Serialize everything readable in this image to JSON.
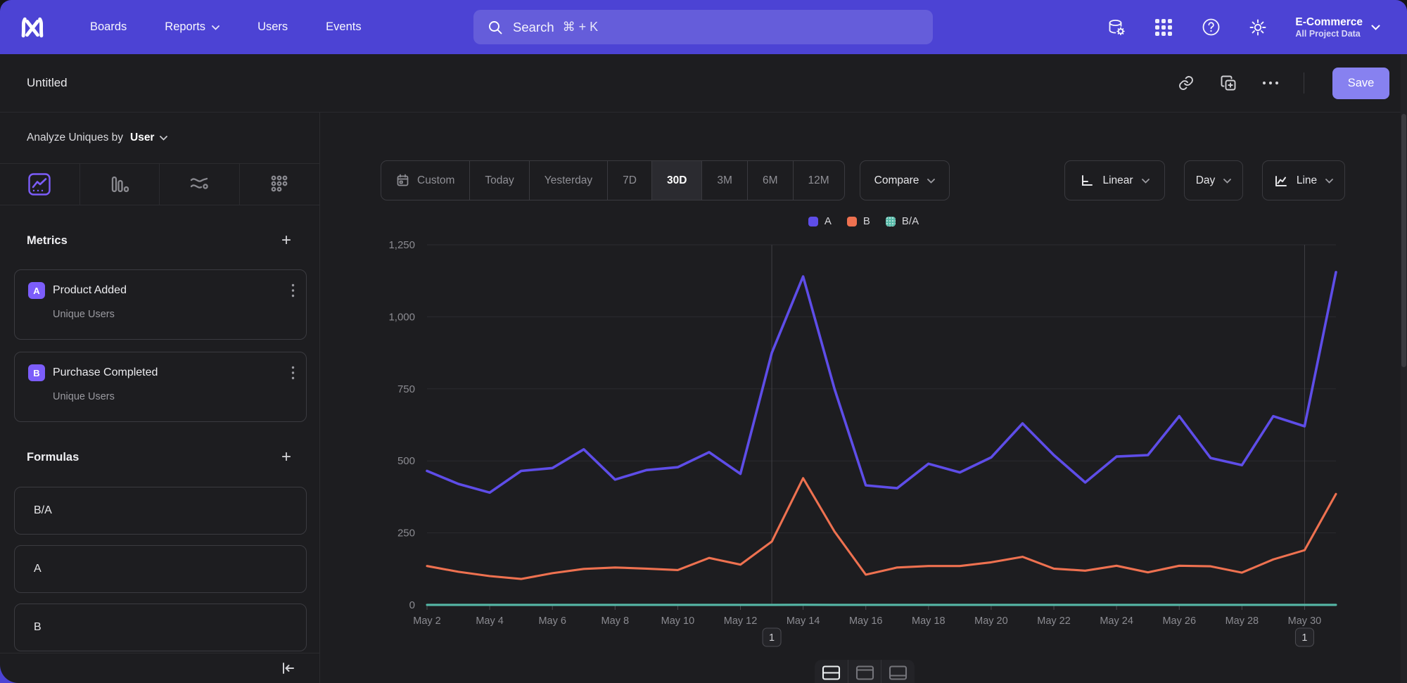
{
  "nav": {
    "items": [
      {
        "label": "Boards",
        "has_menu": false
      },
      {
        "label": "Reports",
        "has_menu": true
      },
      {
        "label": "Users",
        "has_menu": false
      },
      {
        "label": "Events",
        "has_menu": false
      }
    ],
    "search": {
      "placeholder": "Search",
      "shortcut": "⌘ + K"
    },
    "icons": [
      "data-management-icon",
      "apps-grid-icon",
      "help-icon",
      "settings-gear-icon"
    ],
    "project": {
      "name": "E-Commerce",
      "scope": "All Project Data"
    }
  },
  "report": {
    "title": "Untitled",
    "save_label": "Save",
    "actions": [
      "copy-link-icon",
      "duplicate-icon",
      "more-icon"
    ]
  },
  "sidebar": {
    "analyze_label": "Analyze Uniques by",
    "analyze_value": "User",
    "tabs": [
      "line-chart",
      "bar-chart",
      "flow",
      "metric-grid"
    ],
    "active_tab": "line-chart",
    "metrics": {
      "title": "Metrics",
      "add_label": "+",
      "items": [
        {
          "letter": "A",
          "name": "Product Added",
          "sub": "Unique Users"
        },
        {
          "letter": "B",
          "name": "Purchase Completed",
          "sub": "Unique Users"
        }
      ]
    },
    "formulas": {
      "title": "Formulas",
      "add_label": "+",
      "items": [
        "B/A",
        "A",
        "B"
      ]
    }
  },
  "toolbar": {
    "ranges": [
      {
        "label": "Custom",
        "calendar_icon": true
      },
      {
        "label": "Today"
      },
      {
        "label": "Yesterday"
      },
      {
        "label": "7D"
      },
      {
        "label": "30D"
      },
      {
        "label": "3M"
      },
      {
        "label": "6M"
      },
      {
        "label": "12M"
      }
    ],
    "active_range": "30D",
    "compare_label": "Compare",
    "scale_label": "Linear",
    "interval_label": "Day",
    "chart_type_label": "Line"
  },
  "chart_data": {
    "type": "line",
    "title": "",
    "x": [
      "May 2",
      "May 3",
      "May 4",
      "May 5",
      "May 6",
      "May 7",
      "May 8",
      "May 9",
      "May 10",
      "May 11",
      "May 12",
      "May 13",
      "May 14",
      "May 15",
      "May 16",
      "May 17",
      "May 18",
      "May 19",
      "May 20",
      "May 21",
      "May 22",
      "May 23",
      "May 24",
      "May 25",
      "May 26",
      "May 27",
      "May 28",
      "May 29",
      "May 30",
      "May 31"
    ],
    "x_label_step": 2,
    "ylim": [
      0,
      1250
    ],
    "yticks": [
      0,
      250,
      500,
      750,
      1000,
      1250
    ],
    "ytick_labels": [
      "0",
      "250",
      "500",
      "750",
      "1,000",
      "1,250"
    ],
    "grid": true,
    "legend_position": "top-center",
    "series": [
      {
        "name": "A",
        "color": "#5e4de8",
        "values": [
          465,
          420,
          390,
          465,
          475,
          540,
          435,
          468,
          478,
          530,
          455,
          875,
          1140,
          750,
          415,
          405,
          490,
          460,
          512,
          630,
          520,
          425,
          515,
          520,
          655,
          510,
          485,
          655,
          620,
          1155
        ]
      },
      {
        "name": "B",
        "color": "#ee7150",
        "values": [
          135,
          115,
          100,
          90,
          110,
          125,
          130,
          126,
          121,
          163,
          140,
          220,
          440,
          255,
          105,
          130,
          135,
          135,
          148,
          167,
          126,
          119,
          136,
          113,
          136,
          134,
          112,
          158,
          190,
          385
        ]
      },
      {
        "name": "B/A",
        "color": "#55b8a7",
        "values": [
          0.29,
          0.27,
          0.26,
          0.19,
          0.23,
          0.23,
          0.3,
          0.27,
          0.25,
          0.31,
          0.31,
          0.25,
          0.39,
          0.34,
          0.25,
          0.32,
          0.28,
          0.29,
          0.29,
          0.27,
          0.24,
          0.28,
          0.26,
          0.22,
          0.21,
          0.26,
          0.23,
          0.24,
          0.31,
          0.33
        ]
      }
    ],
    "legend": [
      {
        "label": "A",
        "color": "#5e4de8"
      },
      {
        "label": "B",
        "color": "#ee7150"
      },
      {
        "label": "B/A",
        "color": "#55b8a7",
        "dotted": true
      }
    ],
    "annotations": [
      {
        "x": "May 13",
        "index": 11,
        "label": "1"
      },
      {
        "x": "May 30",
        "index": 28,
        "label": "1"
      }
    ]
  },
  "footer": {
    "layout_toggles": [
      "split-view",
      "chart-view",
      "table-view"
    ],
    "active_toggle": "split-view"
  },
  "colors": {
    "nav": "#4c43d4",
    "accent": "#7c5dfa",
    "save": "#8781f0",
    "bg": "#1d1d20"
  }
}
